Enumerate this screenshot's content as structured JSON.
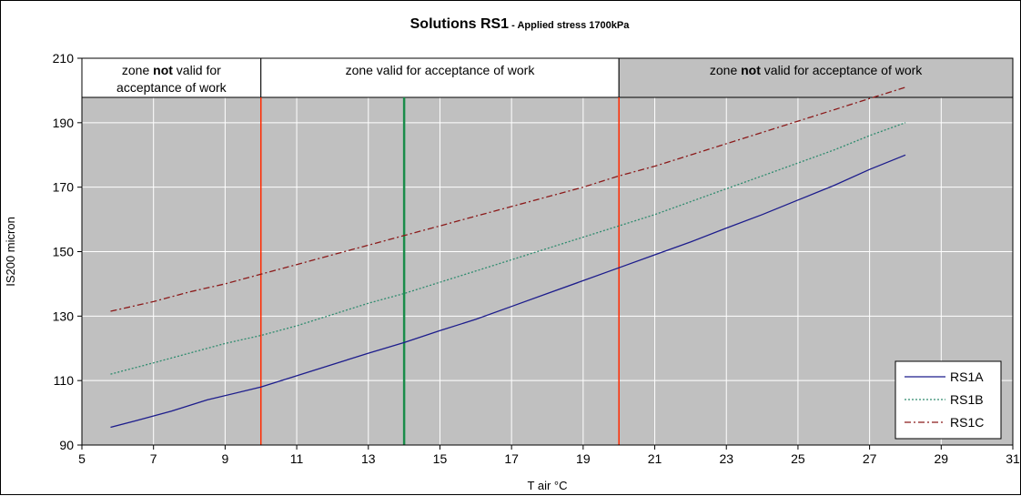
{
  "chart_data": {
    "type": "line",
    "title": "Solutions RS1",
    "subtitle": "- Applied stress 1700kPa",
    "xlabel": "T air °C",
    "ylabel": "IS200 micron",
    "xlim": [
      5,
      31
    ],
    "ylim": [
      90,
      210
    ],
    "x_ticks": [
      5,
      7,
      9,
      11,
      13,
      15,
      17,
      19,
      21,
      23,
      25,
      27,
      29,
      31
    ],
    "y_ticks": [
      90,
      110,
      130,
      150,
      170,
      190,
      210
    ],
    "grid": true,
    "plot_background": "#c0c0c0",
    "legend_position": "bottom-right",
    "series": [
      {
        "name": "RS1A",
        "color": "#1c1c8c",
        "style": "solid",
        "x": [
          5.8,
          6.5,
          7.5,
          8.5,
          10,
          11,
          12,
          13,
          14,
          15,
          16,
          17,
          18,
          19,
          20,
          21,
          22,
          23,
          24,
          25,
          26,
          27,
          28
        ],
        "y": [
          95.5,
          97.5,
          100.5,
          104,
          108,
          111.5,
          115,
          118.5,
          121.8,
          125.5,
          129,
          133,
          137,
          141,
          145,
          149,
          153,
          157.3,
          161.5,
          166,
          170.5,
          175.5,
          180
        ]
      },
      {
        "name": "RS1B",
        "color": "#2e8b6e",
        "style": "dotted",
        "x": [
          5.8,
          7,
          8,
          9,
          10,
          11,
          12,
          13,
          14,
          15,
          16,
          17,
          18,
          19,
          20,
          21,
          22,
          23,
          24,
          25,
          26,
          27,
          28
        ],
        "y": [
          112,
          115.5,
          118.5,
          121.5,
          124,
          127,
          130.5,
          134,
          137,
          140.5,
          144,
          147.5,
          151,
          154.5,
          158,
          161.5,
          165.5,
          169.5,
          173.5,
          177.5,
          181.5,
          186,
          190
        ]
      },
      {
        "name": "RS1C",
        "color": "#8b1a1a",
        "style": "dashdot",
        "x": [
          5.8,
          7,
          8,
          9,
          10,
          11,
          12,
          13,
          14,
          15,
          16,
          17,
          18,
          19,
          20,
          21,
          22,
          23,
          24,
          25,
          26,
          27,
          28
        ],
        "y": [
          131.5,
          134.5,
          137.5,
          140,
          143,
          146,
          149,
          152,
          155,
          158,
          161,
          164,
          167,
          170,
          173.5,
          176.5,
          180,
          183.5,
          187,
          190.5,
          194,
          197.5,
          201
        ]
      }
    ],
    "reference_lines": [
      {
        "x": 10,
        "color": "#ff2a00"
      },
      {
        "x": 14,
        "color": "#1a8c4a"
      },
      {
        "x": 20,
        "color": "#ff2a00"
      }
    ],
    "zones": [
      {
        "from": 5,
        "to": 10,
        "line1_pre": "zone ",
        "line1_bold": "not",
        "line1_post": " valid for",
        "line2": "acceptance of work",
        "fill": "#ffffff"
      },
      {
        "from": 10,
        "to": 20,
        "line1_pre": "zone valid for acceptance of work",
        "line1_bold": "",
        "line1_post": "",
        "line2": "",
        "fill": "#ffffff"
      },
      {
        "from": 20,
        "to": 31,
        "line1_pre": "zone ",
        "line1_bold": "not",
        "line1_post": " valid for acceptance of work",
        "line2": "",
        "fill": "#c0c0c0"
      }
    ]
  }
}
